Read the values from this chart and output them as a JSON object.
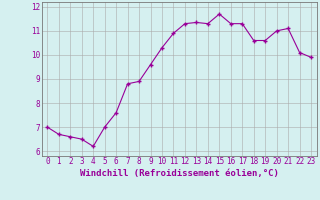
{
  "x": [
    0,
    1,
    2,
    3,
    4,
    5,
    6,
    7,
    8,
    9,
    10,
    11,
    12,
    13,
    14,
    15,
    16,
    17,
    18,
    19,
    20,
    21,
    22,
    23
  ],
  "y": [
    7.0,
    6.7,
    6.6,
    6.5,
    6.2,
    7.0,
    7.6,
    8.8,
    8.9,
    9.6,
    10.3,
    10.9,
    11.3,
    11.35,
    11.3,
    11.7,
    11.3,
    11.3,
    10.6,
    10.6,
    11.0,
    11.1,
    10.1,
    9.9
  ],
  "line_color": "#990099",
  "marker": "+",
  "marker_size": 3,
  "marker_edge_width": 1.0,
  "line_width": 0.8,
  "background_color": "#d5f0f0",
  "grid_color": "#aaaaaa",
  "xlabel": "Windchill (Refroidissement éolien,°C)",
  "xlabel_fontsize": 6.5,
  "ytick_labels": [
    "6",
    "7",
    "8",
    "9",
    "10",
    "11",
    "12"
  ],
  "yticks": [
    6,
    7,
    8,
    9,
    10,
    11,
    12
  ],
  "xtick_labels": [
    "0",
    "1",
    "2",
    "3",
    "4",
    "5",
    "6",
    "7",
    "8",
    "9",
    "10",
    "11",
    "12",
    "13",
    "14",
    "15",
    "16",
    "17",
    "18",
    "19",
    "20",
    "21",
    "22",
    "23"
  ],
  "ylim": [
    5.8,
    12.2
  ],
  "xlim": [
    -0.5,
    23.5
  ],
  "label_color": "#990099",
  "tick_fontsize": 5.5,
  "spine_color": "#777777"
}
